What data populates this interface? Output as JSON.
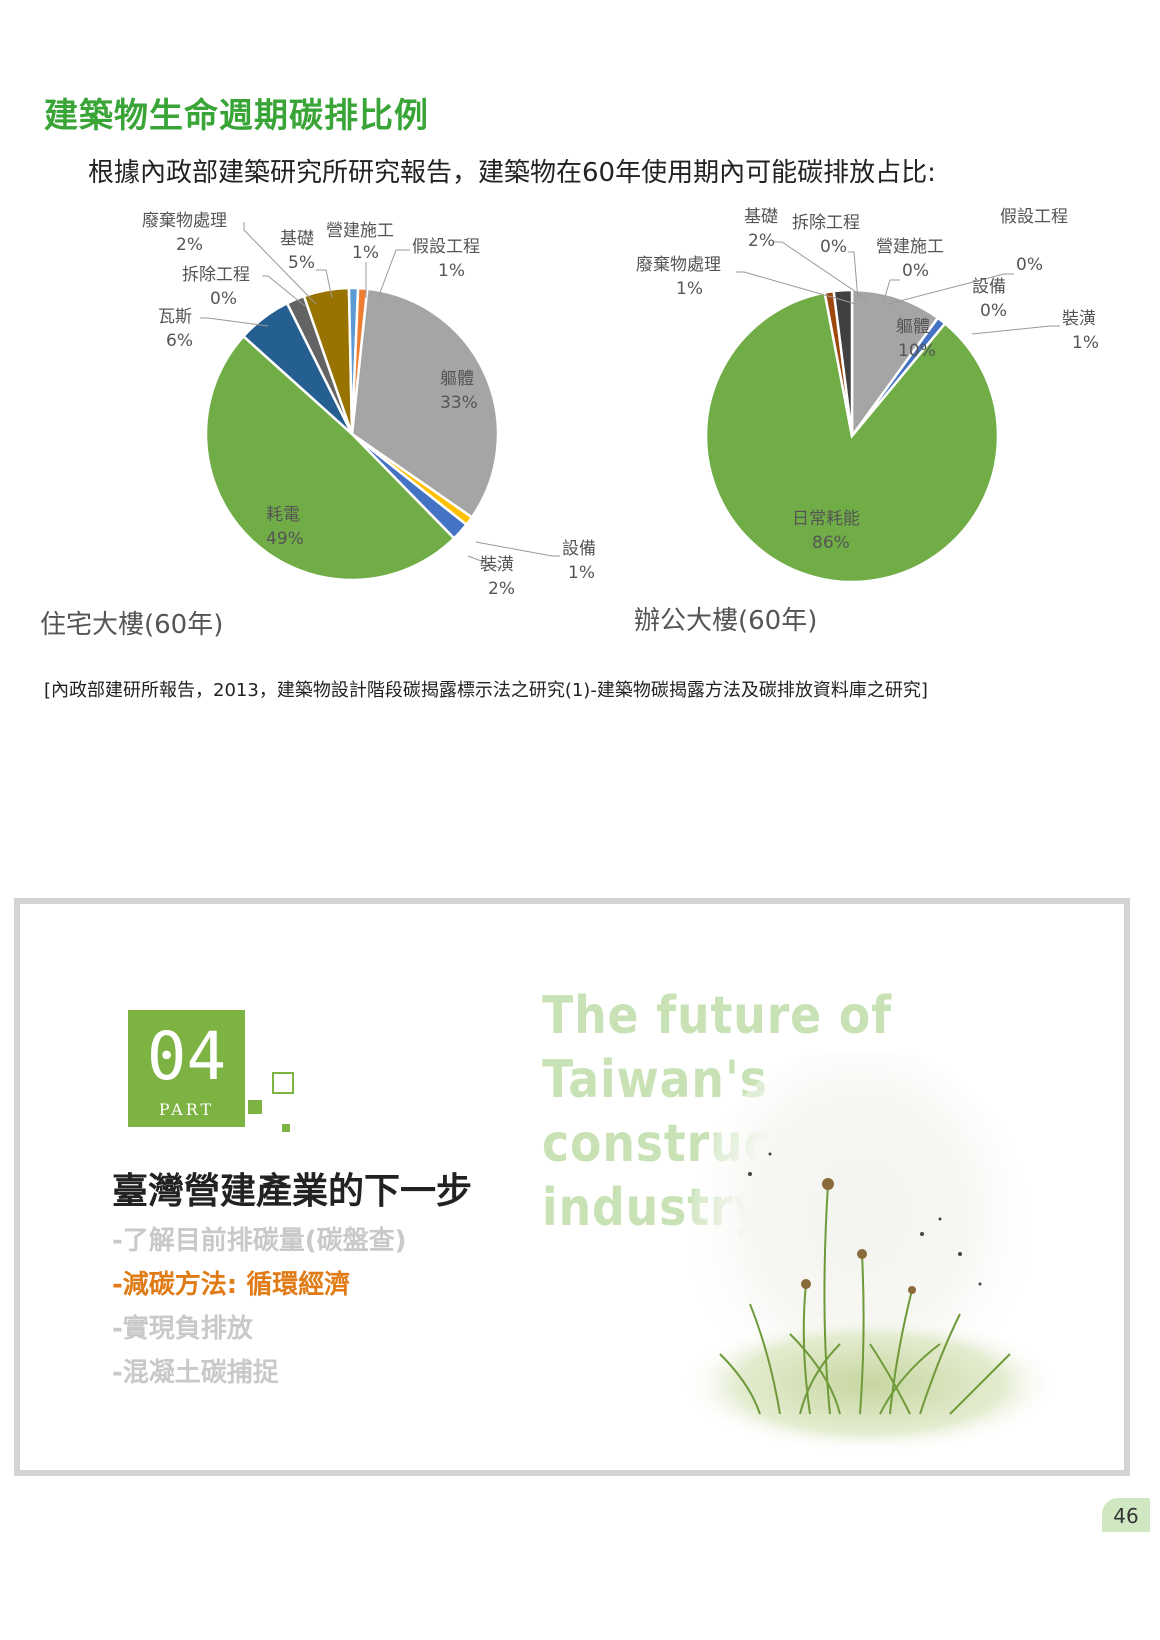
{
  "page": {
    "section_title": "建築物生命週期碳排比例",
    "intro": "根據內政部建築研究所研究報告，建築物在60年使用期內可能碳排放占比:",
    "citation": "[內政部建研所報告，2013，建築物設計階段碳揭露標示法之研究(1)-建築物碳揭露方法及碳排放資料庫之研究]",
    "page_number": "46"
  },
  "chart_data": [
    {
      "type": "pie",
      "title": "住宅大樓(60年)",
      "labels": [
        "耗電",
        "瓦斯",
        "拆除工程",
        "廢棄物處理",
        "基礎",
        "營建施工",
        "假設工程",
        "軀體",
        "設備",
        "裝潢"
      ],
      "label_text": [
        "耗電",
        "瓦斯",
        "拆除工程",
        "廢棄物處理",
        "基礎",
        "營建施工",
        "假設工程",
        "軀體",
        "設備",
        "裝潢"
      ],
      "values": [
        49,
        6,
        0,
        2,
        5,
        1,
        1,
        33,
        1,
        2
      ],
      "value_labels": [
        "49%",
        "6%",
        "0%",
        "2%",
        "5%",
        "1%",
        "1%",
        "33%",
        "1%",
        "2%"
      ],
      "colors": [
        "#70ad47",
        "#255e91",
        "#7f7f7f",
        "#636363",
        "#997300",
        "#5b9bd5",
        "#ed7d31",
        "#a5a5a5",
        "#ffc000",
        "#4472c4"
      ]
    },
    {
      "type": "pie",
      "title": "辦公大樓(60年)",
      "labels": [
        "日常耗能",
        "廢棄物處理",
        "基礎",
        "拆除工程",
        "營建施工",
        "假設工程",
        "軀體",
        "設備",
        "裝潢"
      ],
      "label_text": [
        "日常耗能",
        "廢棄物處理",
        "基礎",
        "拆除工程",
        "營建施工",
        "假設工程",
        "軀體",
        "設備",
        "裝潢"
      ],
      "values": [
        86,
        1,
        2,
        0,
        0,
        0,
        10,
        0,
        1
      ],
      "value_labels": [
        "86%",
        "1%",
        "2%",
        "0%",
        "0%",
        "0%",
        "10%",
        "0%",
        "1%"
      ],
      "colors": [
        "#70ad47",
        "#9e480e",
        "#404040",
        "#7f7f7f",
        "#5b9bd5",
        "#ed7d31",
        "#a5a5a5",
        "#ffc000",
        "#4472c4"
      ]
    }
  ],
  "slide": {
    "part_number": "04",
    "part_label": "PART",
    "heading_en_line1": "The future of Taiwan's",
    "heading_en_line2": "construction industry",
    "heading": "臺灣營建產業的下一步",
    "bullets": [
      {
        "text": "-了解目前排碳量(碳盤查)",
        "active": false
      },
      {
        "text": "-減碳方法: 循環經濟",
        "active": true
      },
      {
        "text": "-實現負排放",
        "active": false
      },
      {
        "text": "-混凝土碳捕捉",
        "active": false
      }
    ]
  }
}
